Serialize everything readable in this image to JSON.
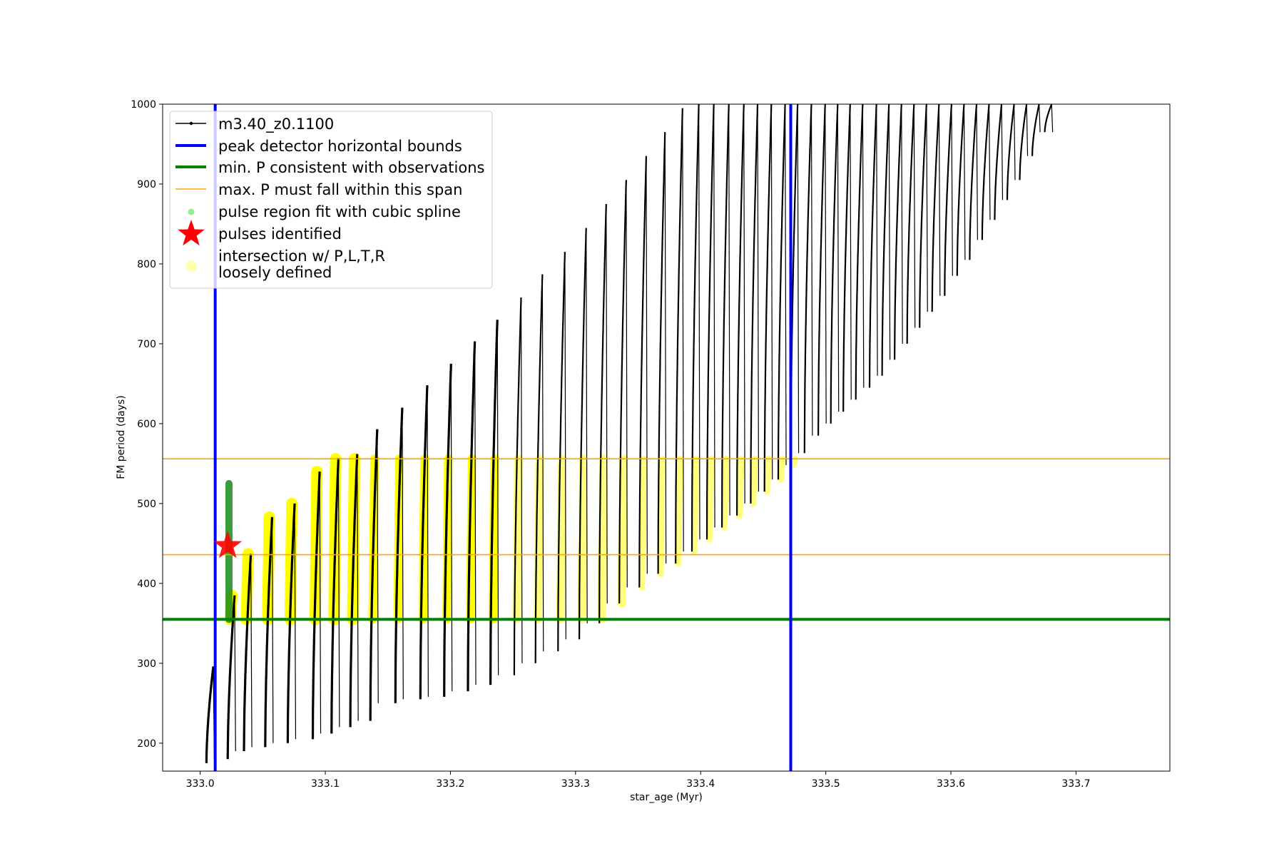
{
  "chart_data": {
    "type": "line",
    "xlabel": "star_age (Myr)",
    "ylabel": "FM period (days)",
    "xlim": [
      332.97,
      333.775
    ],
    "ylim": [
      165,
      1000
    ],
    "x_ticks": [
      "333.0",
      "333.1",
      "333.2",
      "333.3",
      "333.4",
      "333.5",
      "333.6",
      "333.7"
    ],
    "x_tick_values": [
      333.0,
      333.1,
      333.2,
      333.3,
      333.4,
      333.5,
      333.6,
      333.7
    ],
    "y_ticks": [
      "200",
      "300",
      "400",
      "500",
      "600",
      "700",
      "800",
      "900",
      "1000"
    ],
    "y_tick_values": [
      200,
      300,
      400,
      500,
      600,
      700,
      800,
      900,
      1000
    ],
    "grid": false,
    "legend_position": "top-left",
    "legend": [
      {
        "label": "m3.40_z0.1100",
        "kind": "line-marker",
        "color": "#000000"
      },
      {
        "label": "peak detector horizontal bounds",
        "kind": "thick-line",
        "color": "#0000ff"
      },
      {
        "label": "min. P consistent with observations",
        "kind": "thick-line",
        "color": "#008000"
      },
      {
        "label": "max. P must fall within this span",
        "kind": "thin-line",
        "color": "#ffa500"
      },
      {
        "label": "pulse region fit with cubic spline",
        "kind": "dot",
        "color": "#90ee90"
      },
      {
        "label": "pulses identified",
        "kind": "star",
        "color": "#ff0000"
      },
      {
        "label": "intersection w/ P,L,T,R\nloosely defined",
        "kind": "dot-large",
        "color": "#ffffb0"
      }
    ],
    "vertical_lines": [
      {
        "x": 333.012,
        "color": "#0000ff"
      },
      {
        "x": 333.472,
        "color": "#0000ff"
      }
    ],
    "horizontal_lines": [
      {
        "y": 355,
        "color": "#008000",
        "role": "min"
      },
      {
        "y": 436,
        "color": "#ffa500",
        "role": "max-low"
      },
      {
        "y": 556,
        "color": "#ffa500",
        "role": "max-high"
      }
    ],
    "pulses": [
      {
        "x": 333.005,
        "bottom": 175,
        "top": 296
      },
      {
        "x": 333.022,
        "bottom": 180,
        "top": 385
      },
      {
        "x": 333.035,
        "bottom": 190,
        "top": 437
      },
      {
        "x": 333.052,
        "bottom": 195,
        "top": 483
      },
      {
        "x": 333.07,
        "bottom": 200,
        "top": 500
      },
      {
        "x": 333.09,
        "bottom": 205,
        "top": 540
      },
      {
        "x": 333.105,
        "bottom": 212,
        "top": 557
      },
      {
        "x": 333.12,
        "bottom": 220,
        "top": 562
      },
      {
        "x": 333.136,
        "bottom": 228,
        "top": 593
      },
      {
        "x": 333.156,
        "bottom": 250,
        "top": 620
      },
      {
        "x": 333.176,
        "bottom": 255,
        "top": 648
      },
      {
        "x": 333.195,
        "bottom": 258,
        "top": 675
      },
      {
        "x": 333.214,
        "bottom": 265,
        "top": 703
      },
      {
        "x": 333.232,
        "bottom": 273,
        "top": 730
      },
      {
        "x": 333.251,
        "bottom": 285,
        "top": 758
      },
      {
        "x": 333.268,
        "bottom": 300,
        "top": 787
      },
      {
        "x": 333.286,
        "bottom": 315,
        "top": 815
      },
      {
        "x": 333.303,
        "bottom": 330,
        "top": 845
      },
      {
        "x": 333.319,
        "bottom": 350,
        "top": 875
      },
      {
        "x": 333.335,
        "bottom": 375,
        "top": 905
      },
      {
        "x": 333.351,
        "bottom": 395,
        "top": 935
      },
      {
        "x": 333.366,
        "bottom": 412,
        "top": 965
      },
      {
        "x": 333.38,
        "bottom": 425,
        "top": 995
      },
      {
        "x": 333.393,
        "bottom": 440,
        "top": 1000
      },
      {
        "x": 333.405,
        "bottom": 455,
        "top": 1000
      },
      {
        "x": 333.417,
        "bottom": 470,
        "top": 1000
      },
      {
        "x": 333.429,
        "bottom": 485,
        "top": 1000
      },
      {
        "x": 333.44,
        "bottom": 500,
        "top": 1000
      },
      {
        "x": 333.451,
        "bottom": 515,
        "top": 1000
      },
      {
        "x": 333.462,
        "bottom": 530,
        "top": 1000
      },
      {
        "x": 333.472,
        "bottom": 548,
        "top": 1000
      },
      {
        "x": 333.483,
        "bottom": 563,
        "top": 1000
      },
      {
        "x": 333.494,
        "bottom": 585,
        "top": 1000
      },
      {
        "x": 333.504,
        "bottom": 600,
        "top": 1000
      },
      {
        "x": 333.514,
        "bottom": 615,
        "top": 1000
      },
      {
        "x": 333.524,
        "bottom": 630,
        "top": 1000
      },
      {
        "x": 333.535,
        "bottom": 645,
        "top": 1000
      },
      {
        "x": 333.545,
        "bottom": 660,
        "top": 1000
      },
      {
        "x": 333.555,
        "bottom": 680,
        "top": 1000
      },
      {
        "x": 333.565,
        "bottom": 700,
        "top": 1000
      },
      {
        "x": 333.575,
        "bottom": 720,
        "top": 1000
      },
      {
        "x": 333.585,
        "bottom": 740,
        "top": 1000
      },
      {
        "x": 333.595,
        "bottom": 760,
        "top": 1000
      },
      {
        "x": 333.605,
        "bottom": 785,
        "top": 1000
      },
      {
        "x": 333.615,
        "bottom": 805,
        "top": 1000
      },
      {
        "x": 333.625,
        "bottom": 830,
        "top": 1000
      },
      {
        "x": 333.635,
        "bottom": 855,
        "top": 1000
      },
      {
        "x": 333.645,
        "bottom": 880,
        "top": 1000
      },
      {
        "x": 333.655,
        "bottom": 905,
        "top": 1000
      },
      {
        "x": 333.665,
        "bottom": 935,
        "top": 1000
      },
      {
        "x": 333.675,
        "bottom": 965,
        "top": 1000
      }
    ],
    "pulse_identified": {
      "x": 333.022,
      "y": 447,
      "spline_bottom": 355,
      "spline_top": 525
    }
  }
}
